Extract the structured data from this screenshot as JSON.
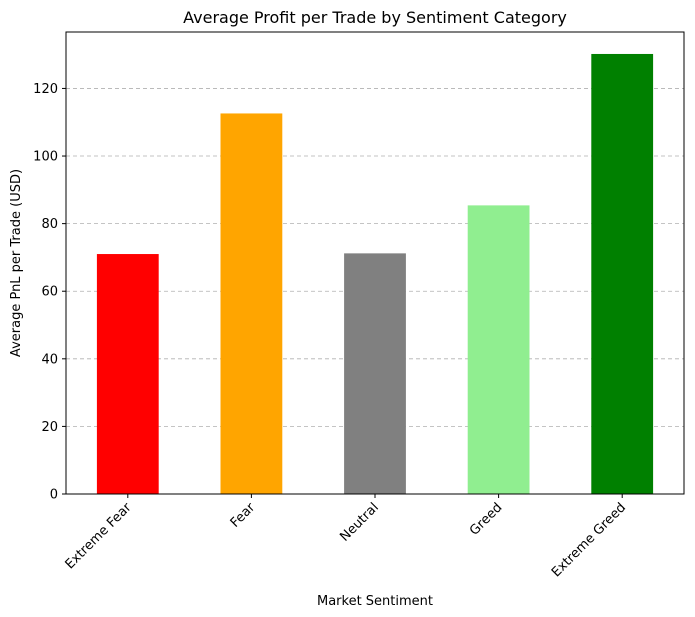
{
  "chart_data": {
    "type": "bar",
    "title": "Average Profit per Trade by Sentiment Category",
    "xlabel": "Market Sentiment",
    "ylabel": "Average PnL per Trade (USD)",
    "categories": [
      "Extreme Fear",
      "Fear",
      "Neutral",
      "Greed",
      "Extreme Greed"
    ],
    "values": [
      71.0,
      112.6,
      71.2,
      85.4,
      130.2
    ],
    "colors": [
      "#ff0000",
      "#ffa500",
      "#808080",
      "#90ee90",
      "#008000"
    ],
    "yticks": [
      0,
      20,
      40,
      60,
      80,
      100,
      120
    ],
    "ylim": [
      0,
      136.7
    ],
    "grid": "y-dashed",
    "legend": "none"
  }
}
